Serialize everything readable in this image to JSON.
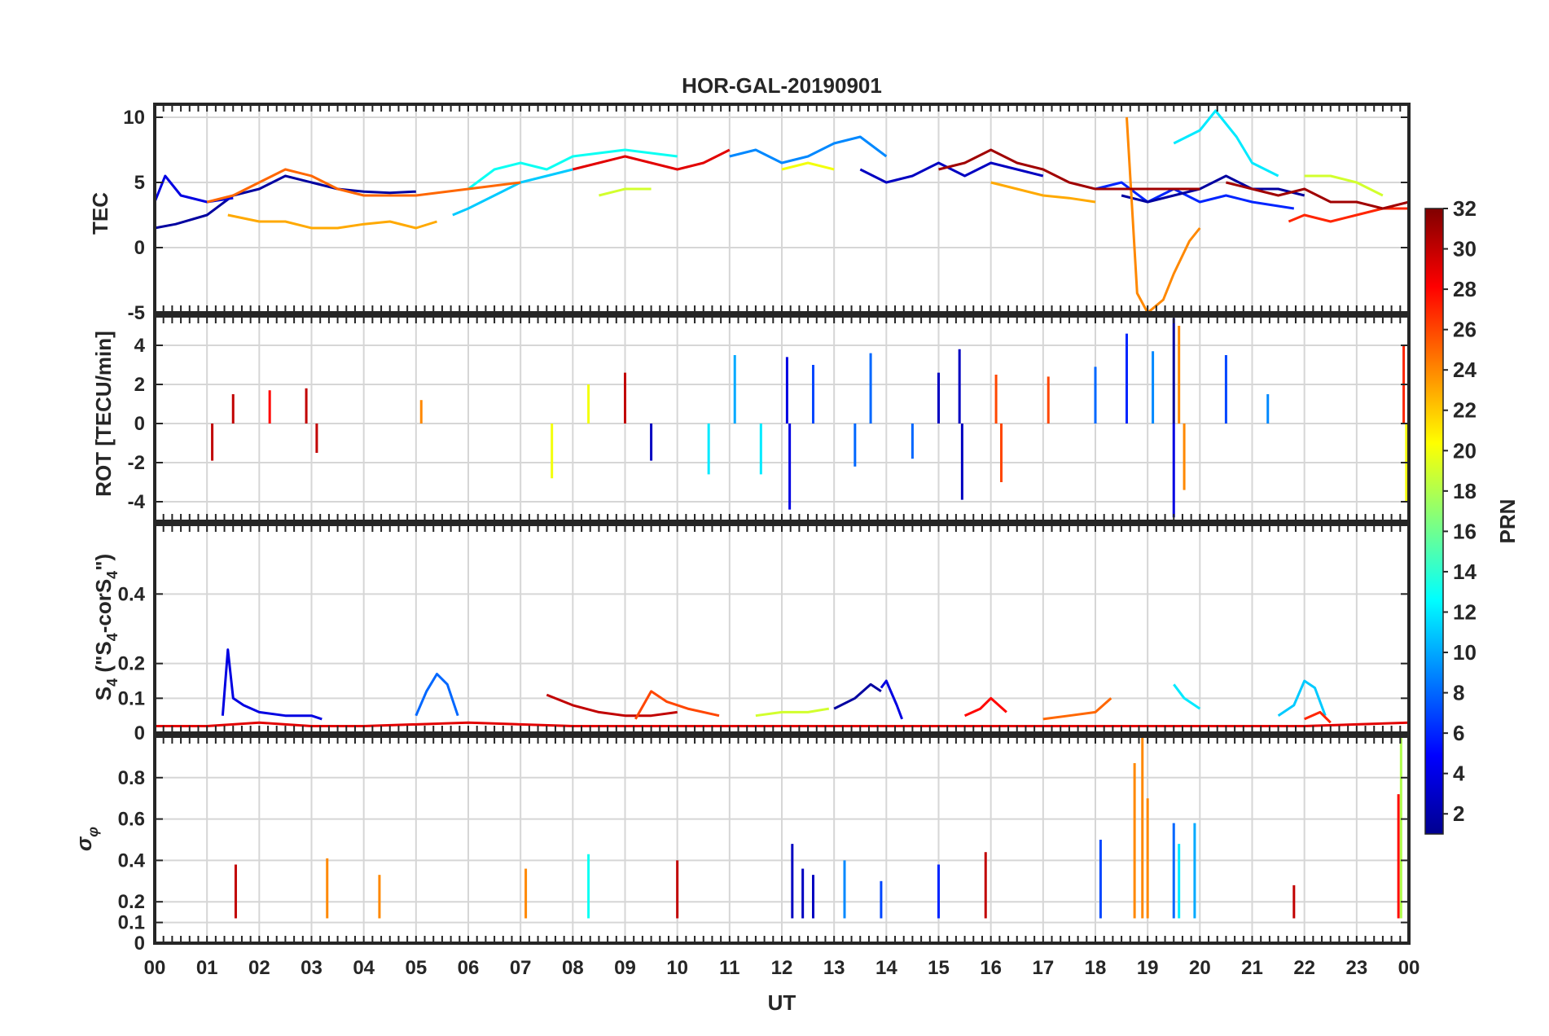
{
  "chart_data": {
    "type": "line",
    "title": "HOR-GAL-20190901",
    "xlabel": "UT",
    "xlim": [
      0,
      24
    ],
    "x_tick_labels": [
      "00",
      "01",
      "02",
      "03",
      "04",
      "05",
      "06",
      "07",
      "08",
      "09",
      "10",
      "11",
      "12",
      "13",
      "14",
      "15",
      "16",
      "17",
      "18",
      "19",
      "20",
      "21",
      "22",
      "23",
      "00"
    ],
    "colorbar": {
      "label": "PRN",
      "range": [
        1,
        32
      ],
      "tick_labels": [
        "2",
        "4",
        "6",
        "8",
        "10",
        "12",
        "14",
        "16",
        "18",
        "20",
        "22",
        "24",
        "26",
        "28",
        "30",
        "32"
      ],
      "colormap": "jet"
    },
    "panels": [
      {
        "id": "tec",
        "ylabel": "TEC",
        "ylim": [
          -5,
          11
        ],
        "y_ticks": [
          -5,
          0,
          5,
          10
        ],
        "y_tick_labels": [
          "-5",
          "0",
          "5",
          "10"
        ],
        "series": [
          {
            "prn": 2,
            "x": [
              0.0,
              0.4,
              1.0,
              1.5,
              2.0,
              2.5,
              3.0,
              3.5,
              4.0,
              4.5,
              5.0
            ],
            "y": [
              1.5,
              1.8,
              2.5,
              4.0,
              4.5,
              5.5,
              5.0,
              4.5,
              4.3,
              4.2,
              4.3
            ]
          },
          {
            "prn": 4,
            "x": [
              0.0,
              0.2,
              0.5,
              1.0,
              1.5
            ],
            "y": [
              3.5,
              5.5,
              4.0,
              3.5,
              3.8
            ]
          },
          {
            "prn": 3,
            "x": [
              13.5,
              14.0,
              14.5,
              15.0,
              15.5,
              16.0,
              16.5,
              17.0
            ],
            "y": [
              6.0,
              5.0,
              5.5,
              6.5,
              5.5,
              6.5,
              6.0,
              5.5
            ]
          },
          {
            "prn": 6,
            "x": [
              18.0,
              18.5,
              19.0,
              19.5,
              20.0,
              20.5,
              21.0,
              21.8
            ],
            "y": [
              4.5,
              5.0,
              3.5,
              4.5,
              3.5,
              4.0,
              3.5,
              3.0
            ]
          },
          {
            "prn": 2,
            "x": [
              18.5,
              19.0,
              19.5,
              20.0,
              20.5,
              21.0,
              21.5,
              22.0
            ],
            "y": [
              4.0,
              3.5,
              4.0,
              4.5,
              5.5,
              4.5,
              4.5,
              4.0
            ]
          },
          {
            "prn": 9,
            "x": [
              11.0,
              11.5,
              12.0,
              12.5,
              13.0,
              13.5,
              14.0
            ],
            "y": [
              7.0,
              7.5,
              6.5,
              7.0,
              8.0,
              8.5,
              7.0
            ]
          },
          {
            "prn": 11,
            "x": [
              5.7,
              6.0,
              6.5,
              7.0,
              7.5,
              8.0
            ],
            "y": [
              2.5,
              3.0,
              4.0,
              5.0,
              5.5,
              6.0
            ]
          },
          {
            "prn": 12,
            "x": [
              19.5,
              20.0,
              20.3,
              20.7,
              21.0,
              21.5
            ],
            "y": [
              8.0,
              9.0,
              10.5,
              8.5,
              6.5,
              5.5
            ]
          },
          {
            "prn": 13,
            "x": [
              6.0,
              6.5,
              7.0,
              7.5,
              8.0,
              9.0,
              10.0
            ],
            "y": [
              4.5,
              6.0,
              6.5,
              6.0,
              7.0,
              7.5,
              7.0
            ]
          },
          {
            "prn": 19,
            "x": [
              8.5,
              9.0,
              9.5
            ],
            "y": [
              4.0,
              4.5,
              4.5
            ]
          },
          {
            "prn": 20,
            "x": [
              12.0,
              12.5,
              13.0
            ],
            "y": [
              6.0,
              6.5,
              6.0
            ]
          },
          {
            "prn": 19,
            "x": [
              22.0,
              22.5,
              23.0,
              23.5
            ],
            "y": [
              5.5,
              5.5,
              5.0,
              4.0
            ]
          },
          {
            "prn": 23,
            "x": [
              1.4,
              2.0,
              2.5,
              3.0,
              3.5,
              4.0,
              4.5,
              5.0,
              5.4
            ],
            "y": [
              2.5,
              2.0,
              2.0,
              1.5,
              1.5,
              1.8,
              2.0,
              1.5,
              2.0
            ]
          },
          {
            "prn": 23,
            "x": [
              16.0,
              16.5,
              17.0,
              17.5,
              18.0
            ],
            "y": [
              5.0,
              4.5,
              4.0,
              3.8,
              3.5
            ]
          },
          {
            "prn": 24,
            "x": [
              18.6,
              18.8,
              19.0,
              19.3,
              19.5,
              19.8,
              20.0
            ],
            "y": [
              10.0,
              -3.5,
              -5.0,
              -4.0,
              -2.0,
              0.5,
              1.5
            ]
          },
          {
            "prn": 25,
            "x": [
              1.0,
              1.5,
              2.0,
              2.5,
              3.0,
              3.5,
              4.0,
              5.0,
              6.0,
              7.0
            ],
            "y": [
              3.5,
              4.0,
              5.0,
              6.0,
              5.5,
              4.5,
              4.0,
              4.0,
              4.5,
              5.0
            ]
          },
          {
            "prn": 27,
            "x": [
              21.7,
              22.0,
              22.5,
              23.0,
              23.5,
              24.0
            ],
            "y": [
              2.0,
              2.5,
              2.0,
              2.5,
              3.0,
              3.0
            ]
          },
          {
            "prn": 29,
            "x": [
              8.0,
              8.5,
              9.0,
              9.5,
              10.0,
              10.5,
              11.0
            ],
            "y": [
              6.0,
              6.5,
              7.0,
              6.5,
              6.0,
              6.5,
              7.5
            ]
          },
          {
            "prn": 31,
            "x": [
              15.0,
              15.5,
              16.0,
              16.5,
              17.0,
              17.5,
              18.0,
              19.0,
              20.0
            ],
            "y": [
              6.0,
              6.5,
              7.5,
              6.5,
              6.0,
              5.0,
              4.5,
              4.5,
              4.5
            ]
          },
          {
            "prn": 31,
            "x": [
              20.5,
              21.0,
              21.5,
              22.0,
              22.5,
              23.0,
              23.5,
              24.0
            ],
            "y": [
              5.0,
              4.5,
              4.0,
              4.5,
              3.5,
              3.5,
              3.0,
              3.5
            ]
          }
        ]
      },
      {
        "id": "rot",
        "ylabel": "ROT [TECU/min]",
        "ylim": [
          -5,
          5.5
        ],
        "y_ticks": [
          -4,
          -2,
          0,
          2,
          4
        ],
        "y_tick_labels": [
          "-4",
          "-2",
          "0",
          "2",
          "4"
        ],
        "spikes": [
          {
            "x": 1.1,
            "y": -1.9,
            "prn": 30
          },
          {
            "x": 1.5,
            "y": 1.5,
            "prn": 30
          },
          {
            "x": 2.2,
            "y": 1.7,
            "prn": 28
          },
          {
            "x": 2.9,
            "y": 1.8,
            "prn": 30
          },
          {
            "x": 3.1,
            "y": -1.5,
            "prn": 30
          },
          {
            "x": 5.1,
            "y": 1.2,
            "prn": 24
          },
          {
            "x": 7.6,
            "y": -2.8,
            "prn": 20
          },
          {
            "x": 8.3,
            "y": 2.0,
            "prn": 20
          },
          {
            "x": 9.0,
            "y": 2.6,
            "prn": 30
          },
          {
            "x": 9.5,
            "y": -1.9,
            "prn": 3
          },
          {
            "x": 10.6,
            "y": -2.6,
            "prn": 12
          },
          {
            "x": 11.1,
            "y": 3.5,
            "prn": 10
          },
          {
            "x": 11.6,
            "y": -2.6,
            "prn": 12
          },
          {
            "x": 12.1,
            "y": 3.4,
            "prn": 4
          },
          {
            "x": 12.15,
            "y": -4.4,
            "prn": 4
          },
          {
            "x": 12.6,
            "y": 3.0,
            "prn": 7
          },
          {
            "x": 13.4,
            "y": -2.2,
            "prn": 8
          },
          {
            "x": 13.7,
            "y": 3.6,
            "prn": 8
          },
          {
            "x": 14.5,
            "y": -1.8,
            "prn": 8
          },
          {
            "x": 15.0,
            "y": 2.6,
            "prn": 3
          },
          {
            "x": 15.4,
            "y": 3.8,
            "prn": 3
          },
          {
            "x": 15.45,
            "y": -3.9,
            "prn": 3
          },
          {
            "x": 16.1,
            "y": 2.5,
            "prn": 26
          },
          {
            "x": 16.2,
            "y": -3.0,
            "prn": 26
          },
          {
            "x": 17.1,
            "y": 2.4,
            "prn": 26
          },
          {
            "x": 18.0,
            "y": 2.9,
            "prn": 8
          },
          {
            "x": 18.6,
            "y": 4.6,
            "prn": 6
          },
          {
            "x": 19.1,
            "y": 3.7,
            "prn": 9
          },
          {
            "x": 19.5,
            "y": 5.4,
            "prn": 2
          },
          {
            "x": 19.5,
            "y": -4.8,
            "prn": 4
          },
          {
            "x": 19.6,
            "y": 5.0,
            "prn": 24
          },
          {
            "x": 19.7,
            "y": -3.4,
            "prn": 24
          },
          {
            "x": 20.5,
            "y": 3.5,
            "prn": 7
          },
          {
            "x": 21.3,
            "y": 1.5,
            "prn": 9
          },
          {
            "x": 23.9,
            "y": 4.0,
            "prn": 27
          },
          {
            "x": 23.95,
            "y": -4.0,
            "prn": 20
          }
        ]
      },
      {
        "id": "s4",
        "ylabel": "S4 (\"S4-corS4\")",
        "ylim": [
          0,
          0.6
        ],
        "y_ticks": [
          0,
          0.1,
          0.2,
          0.4
        ],
        "y_tick_labels": [
          "0",
          "0.1",
          "0.2",
          "0.4"
        ],
        "series": [
          {
            "prn": 4,
            "x": [
              1.3,
              1.4,
              1.5,
              1.7,
              2.0,
              2.5,
              3.0,
              3.2
            ],
            "y": [
              0.05,
              0.24,
              0.1,
              0.08,
              0.06,
              0.05,
              0.05,
              0.04
            ]
          },
          {
            "prn": 8,
            "x": [
              5.0,
              5.2,
              5.4,
              5.6,
              5.8
            ],
            "y": [
              0.05,
              0.12,
              0.17,
              0.14,
              0.05
            ]
          },
          {
            "prn": 30,
            "x": [
              7.5,
              8.0,
              8.5,
              9.0,
              9.5,
              10.0
            ],
            "y": [
              0.11,
              0.08,
              0.06,
              0.05,
              0.05,
              0.06
            ]
          },
          {
            "prn": 26,
            "x": [
              9.2,
              9.5,
              9.8,
              10.2,
              10.8
            ],
            "y": [
              0.04,
              0.12,
              0.09,
              0.07,
              0.05
            ]
          },
          {
            "prn": 19,
            "x": [
              11.5,
              12.0,
              12.5,
              12.9
            ],
            "y": [
              0.05,
              0.06,
              0.06,
              0.07
            ]
          },
          {
            "prn": 2,
            "x": [
              13.0,
              13.4,
              13.7,
              13.9
            ],
            "y": [
              0.07,
              0.1,
              0.14,
              0.12
            ]
          },
          {
            "prn": 4,
            "x": [
              13.9,
              14.0,
              14.2,
              14.3
            ],
            "y": [
              0.13,
              0.15,
              0.08,
              0.04
            ]
          },
          {
            "prn": 28,
            "x": [
              15.5,
              15.8,
              16.0,
              16.3
            ],
            "y": [
              0.05,
              0.07,
              0.1,
              0.06
            ]
          },
          {
            "prn": 25,
            "x": [
              17.0,
              17.5,
              18.0,
              18.3
            ],
            "y": [
              0.04,
              0.05,
              0.06,
              0.1
            ]
          },
          {
            "prn": 12,
            "x": [
              19.5,
              19.7,
              20.0
            ],
            "y": [
              0.14,
              0.1,
              0.07
            ]
          },
          {
            "prn": 11,
            "x": [
              21.5,
              21.8,
              22.0,
              22.2,
              22.4
            ],
            "y": [
              0.05,
              0.08,
              0.15,
              0.13,
              0.05
            ]
          },
          {
            "prn": 27,
            "x": [
              22.0,
              22.3,
              22.5
            ],
            "y": [
              0.04,
              0.06,
              0.03
            ]
          },
          {
            "prn": 29,
            "x": [
              0.0,
              1.0,
              2.0,
              3.0,
              4.0,
              6.0,
              8.0,
              10.0,
              12.0,
              14.0,
              16.0,
              18.0,
              20.0,
              22.0,
              24.0
            ],
            "y": [
              0.02,
              0.02,
              0.03,
              0.02,
              0.02,
              0.03,
              0.02,
              0.02,
              0.02,
              0.02,
              0.02,
              0.02,
              0.02,
              0.02,
              0.03
            ]
          }
        ]
      },
      {
        "id": "sigma_phi",
        "ylabel": "σφ",
        "ylim": [
          0,
          1.0
        ],
        "y_ticks": [
          0,
          0.1,
          0.2,
          0.4,
          0.6,
          0.8
        ],
        "y_tick_labels": [
          "0",
          "0.1",
          "0.2",
          "0.4",
          "0.6",
          "0.8"
        ],
        "baseline": 0.12,
        "spikes": [
          {
            "x": 1.55,
            "y": 0.38,
            "prn": 30
          },
          {
            "x": 3.3,
            "y": 0.41,
            "prn": 24
          },
          {
            "x": 4.3,
            "y": 0.33,
            "prn": 24
          },
          {
            "x": 7.1,
            "y": 0.36,
            "prn": 24
          },
          {
            "x": 8.3,
            "y": 0.43,
            "prn": 13
          },
          {
            "x": 10.0,
            "y": 0.4,
            "prn": 30
          },
          {
            "x": 12.2,
            "y": 0.48,
            "prn": 3
          },
          {
            "x": 12.4,
            "y": 0.36,
            "prn": 3
          },
          {
            "x": 12.6,
            "y": 0.33,
            "prn": 3
          },
          {
            "x": 13.2,
            "y": 0.4,
            "prn": 9
          },
          {
            "x": 13.9,
            "y": 0.3,
            "prn": 7
          },
          {
            "x": 15.0,
            "y": 0.38,
            "prn": 6
          },
          {
            "x": 15.9,
            "y": 0.44,
            "prn": 30
          },
          {
            "x": 18.1,
            "y": 0.5,
            "prn": 7
          },
          {
            "x": 18.75,
            "y": 0.87,
            "prn": 24
          },
          {
            "x": 18.9,
            "y": 1.0,
            "prn": 24
          },
          {
            "x": 19.0,
            "y": 0.7,
            "prn": 24
          },
          {
            "x": 19.5,
            "y": 0.58,
            "prn": 8
          },
          {
            "x": 19.6,
            "y": 0.48,
            "prn": 12
          },
          {
            "x": 19.9,
            "y": 0.58,
            "prn": 10
          },
          {
            "x": 21.8,
            "y": 0.28,
            "prn": 30
          },
          {
            "x": 23.8,
            "y": 0.72,
            "prn": 28
          },
          {
            "x": 23.85,
            "y": 1.0,
            "prn": 18
          }
        ]
      }
    ]
  }
}
